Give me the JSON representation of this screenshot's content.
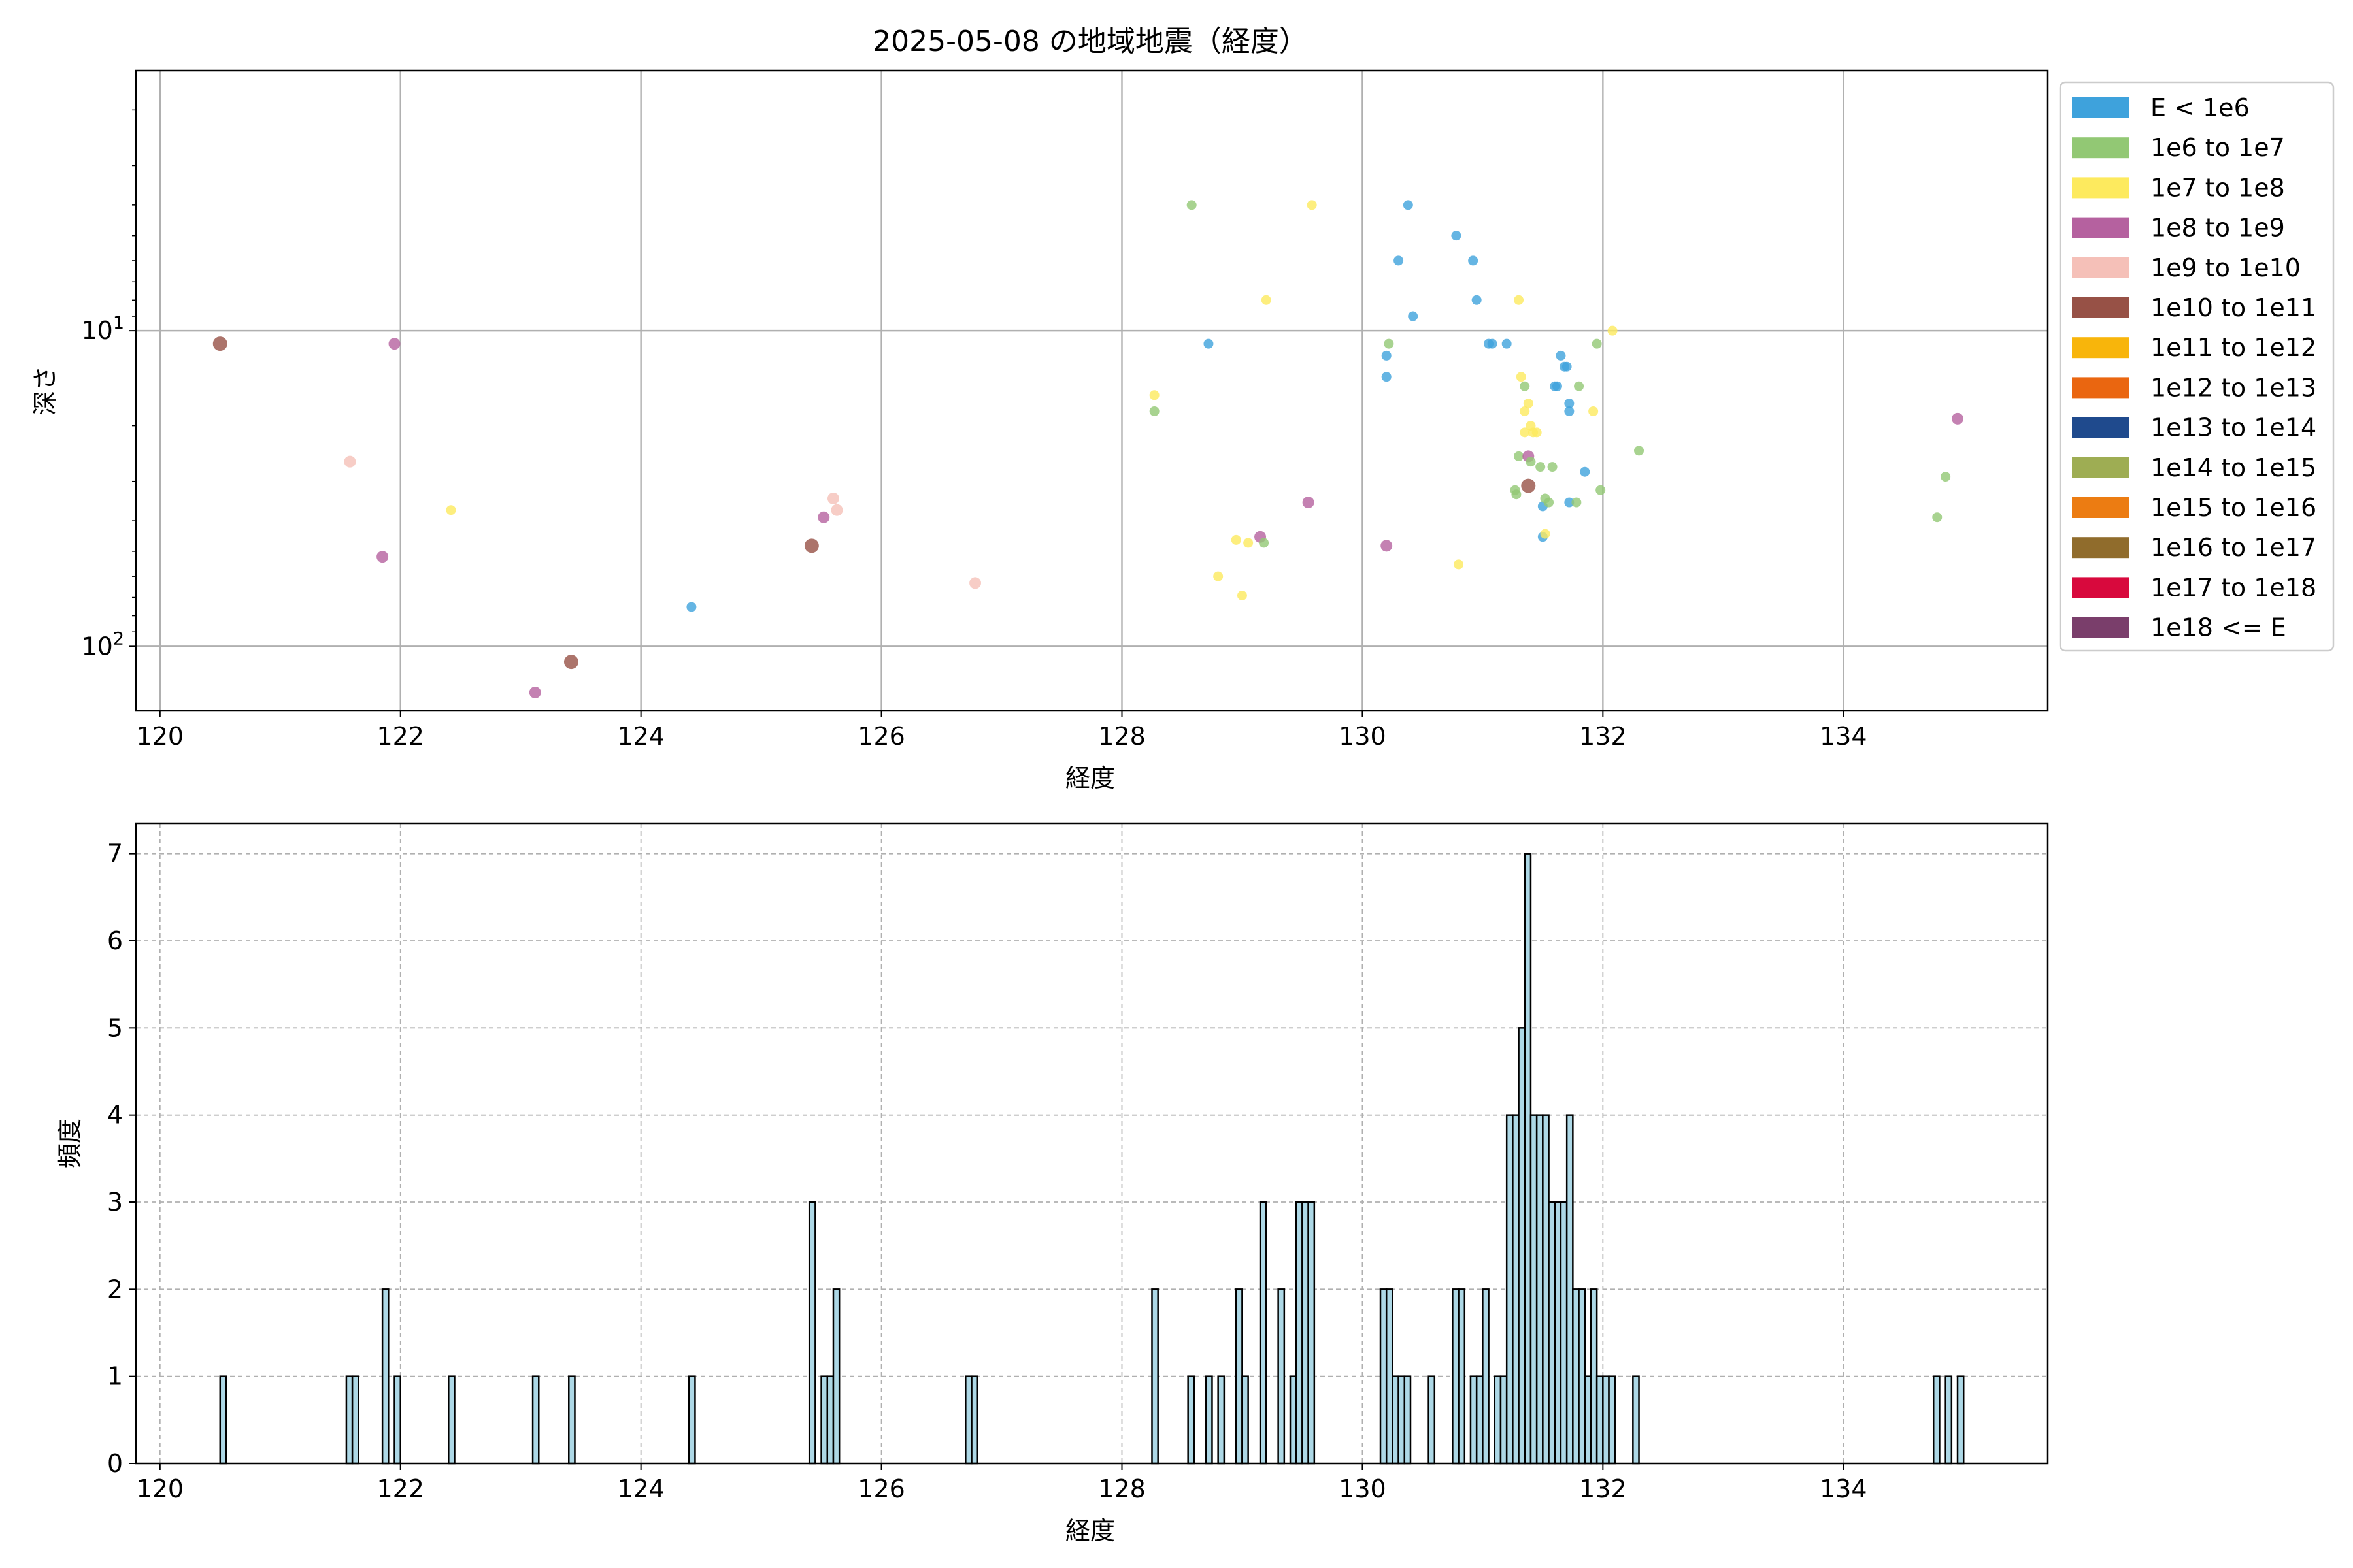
{
  "chart_data": [
    {
      "type": "scatter",
      "title": "2025-05-08 の地域地震（経度）",
      "xlabel": "経度",
      "ylabel": "深さ",
      "xlim": [
        119.8,
        135.7
      ],
      "ylim": [
        160,
        1.5
      ],
      "yscale": "log",
      "y_inverted": true,
      "x_ticks": [
        120,
        122,
        124,
        126,
        128,
        130,
        132,
        134
      ],
      "y_ticks": [
        10,
        100
      ],
      "y_tick_labels": [
        "10^1",
        "10^2"
      ],
      "grid": true,
      "legend_position": "outside-right",
      "legend": [
        {
          "label": "E < 1e6",
          "color": "#3ea2dc"
        },
        {
          "label": "1e6 to 1e7",
          "color": "#92c874"
        },
        {
          "label": "1e7 to 1e8",
          "color": "#fdea5e"
        },
        {
          "label": "1e8 to 1e9",
          "color": "#b5619f"
        },
        {
          "label": "1e9 to 1e10",
          "color": "#f5c0b8"
        },
        {
          "label": "1e10 to 1e11",
          "color": "#975146"
        },
        {
          "label": "1e11 to 1e12",
          "color": "#f8b50b"
        },
        {
          "label": "1e12 to 1e13",
          "color": "#ea6610"
        },
        {
          "label": "1e13 to 1e14",
          "color": "#1f4a8d"
        },
        {
          "label": "1e14 to 1e15",
          "color": "#9ead53"
        },
        {
          "label": "1e15 to 1e16",
          "color": "#ec7c12"
        },
        {
          "label": "1e16 to 1e17",
          "color": "#906c2c"
        },
        {
          "label": "1e17 to 1e18",
          "color": "#d8093d"
        },
        {
          "label": "1e18 <= E",
          "color": "#7a3e6b"
        }
      ],
      "points": [
        {
          "x": 120.5,
          "y": 11,
          "c": 5
        },
        {
          "x": 121.95,
          "y": 11,
          "c": 3
        },
        {
          "x": 121.58,
          "y": 26,
          "c": 4
        },
        {
          "x": 121.85,
          "y": 52,
          "c": 3
        },
        {
          "x": 122.42,
          "y": 37,
          "c": 2
        },
        {
          "x": 123.12,
          "y": 140,
          "c": 3
        },
        {
          "x": 123.42,
          "y": 112,
          "c": 5
        },
        {
          "x": 124.42,
          "y": 75,
          "c": 0
        },
        {
          "x": 125.42,
          "y": 48,
          "c": 5
        },
        {
          "x": 125.52,
          "y": 39,
          "c": 3
        },
        {
          "x": 125.6,
          "y": 34,
          "c": 4
        },
        {
          "x": 125.63,
          "y": 37,
          "c": 4
        },
        {
          "x": 126.78,
          "y": 63,
          "c": 4
        },
        {
          "x": 128.27,
          "y": 16,
          "c": 2
        },
        {
          "x": 128.27,
          "y": 18,
          "c": 1
        },
        {
          "x": 128.58,
          "y": 4,
          "c": 1
        },
        {
          "x": 128.72,
          "y": 11,
          "c": 0
        },
        {
          "x": 128.8,
          "y": 60,
          "c": 2
        },
        {
          "x": 128.95,
          "y": 46,
          "c": 2
        },
        {
          "x": 129.0,
          "y": 69,
          "c": 2
        },
        {
          "x": 129.05,
          "y": 47,
          "c": 2
        },
        {
          "x": 129.15,
          "y": 45,
          "c": 3
        },
        {
          "x": 129.18,
          "y": 47,
          "c": 1
        },
        {
          "x": 129.2,
          "y": 8,
          "c": 2
        },
        {
          "x": 129.55,
          "y": 35,
          "c": 3
        },
        {
          "x": 129.58,
          "y": 4,
          "c": 2
        },
        {
          "x": 130.2,
          "y": 14,
          "c": 0
        },
        {
          "x": 130.2,
          "y": 12,
          "c": 0
        },
        {
          "x": 130.22,
          "y": 11,
          "c": 1
        },
        {
          "x": 130.2,
          "y": 48,
          "c": 3
        },
        {
          "x": 130.3,
          "y": 6,
          "c": 0
        },
        {
          "x": 130.38,
          "y": 4,
          "c": 0
        },
        {
          "x": 130.42,
          "y": 9,
          "c": 0
        },
        {
          "x": 130.78,
          "y": 5,
          "c": 0
        },
        {
          "x": 130.8,
          "y": 55,
          "c": 2
        },
        {
          "x": 130.92,
          "y": 6,
          "c": 0
        },
        {
          "x": 130.95,
          "y": 8,
          "c": 0
        },
        {
          "x": 131.05,
          "y": 11,
          "c": 0
        },
        {
          "x": 131.08,
          "y": 11,
          "c": 0
        },
        {
          "x": 131.2,
          "y": 11,
          "c": 0
        },
        {
          "x": 131.3,
          "y": 8,
          "c": 2
        },
        {
          "x": 131.27,
          "y": 32,
          "c": 1
        },
        {
          "x": 131.28,
          "y": 33,
          "c": 1
        },
        {
          "x": 131.3,
          "y": 25,
          "c": 1
        },
        {
          "x": 131.32,
          "y": 14,
          "c": 2
        },
        {
          "x": 131.35,
          "y": 15,
          "c": 1
        },
        {
          "x": 131.35,
          "y": 18,
          "c": 2
        },
        {
          "x": 131.35,
          "y": 21,
          "c": 2
        },
        {
          "x": 131.38,
          "y": 17,
          "c": 2
        },
        {
          "x": 131.4,
          "y": 20,
          "c": 2
        },
        {
          "x": 131.42,
          "y": 21,
          "c": 2
        },
        {
          "x": 131.38,
          "y": 25,
          "c": 3
        },
        {
          "x": 131.4,
          "y": 26,
          "c": 1
        },
        {
          "x": 131.38,
          "y": 31,
          "c": 5
        },
        {
          "x": 131.45,
          "y": 21,
          "c": 2
        },
        {
          "x": 131.48,
          "y": 27,
          "c": 1
        },
        {
          "x": 131.5,
          "y": 36,
          "c": 0
        },
        {
          "x": 131.5,
          "y": 45,
          "c": 0
        },
        {
          "x": 131.52,
          "y": 44,
          "c": 2
        },
        {
          "x": 131.52,
          "y": 34,
          "c": 1
        },
        {
          "x": 131.55,
          "y": 35,
          "c": 1
        },
        {
          "x": 131.58,
          "y": 27,
          "c": 1
        },
        {
          "x": 131.6,
          "y": 15,
          "c": 0
        },
        {
          "x": 131.62,
          "y": 15,
          "c": 0
        },
        {
          "x": 131.65,
          "y": 12,
          "c": 0
        },
        {
          "x": 131.68,
          "y": 13,
          "c": 0
        },
        {
          "x": 131.7,
          "y": 13,
          "c": 0
        },
        {
          "x": 131.72,
          "y": 17,
          "c": 0
        },
        {
          "x": 131.72,
          "y": 18,
          "c": 0
        },
        {
          "x": 131.72,
          "y": 35,
          "c": 0
        },
        {
          "x": 131.78,
          "y": 35,
          "c": 1
        },
        {
          "x": 131.8,
          "y": 15,
          "c": 1
        },
        {
          "x": 131.85,
          "y": 28,
          "c": 0
        },
        {
          "x": 131.92,
          "y": 18,
          "c": 2
        },
        {
          "x": 131.95,
          "y": 11,
          "c": 1
        },
        {
          "x": 131.98,
          "y": 32,
          "c": 1
        },
        {
          "x": 132.08,
          "y": 10,
          "c": 2
        },
        {
          "x": 132.3,
          "y": 24,
          "c": 1
        },
        {
          "x": 134.78,
          "y": 39,
          "c": 1
        },
        {
          "x": 134.85,
          "y": 29,
          "c": 1
        },
        {
          "x": 134.95,
          "y": 19,
          "c": 3
        }
      ]
    },
    {
      "type": "bar",
      "xlabel": "経度",
      "ylabel": "頻度",
      "xlim": [
        119.8,
        135.7
      ],
      "ylim": [
        0,
        7.35
      ],
      "x_ticks": [
        120,
        122,
        124,
        126,
        128,
        130,
        132,
        134
      ],
      "y_ticks": [
        0,
        1,
        2,
        3,
        4,
        5,
        6,
        7
      ],
      "bin_width": 0.05,
      "grid": "dashed",
      "bar_color": "#add8e6",
      "edge_color": "#000000",
      "bins": [
        {
          "x": 120.5,
          "v": 1
        },
        {
          "x": 121.55,
          "v": 1
        },
        {
          "x": 121.6,
          "v": 1
        },
        {
          "x": 121.85,
          "v": 2
        },
        {
          "x": 121.95,
          "v": 1
        },
        {
          "x": 122.4,
          "v": 1
        },
        {
          "x": 123.1,
          "v": 1
        },
        {
          "x": 123.4,
          "v": 1
        },
        {
          "x": 124.4,
          "v": 1
        },
        {
          "x": 125.4,
          "v": 3
        },
        {
          "x": 125.5,
          "v": 1
        },
        {
          "x": 125.55,
          "v": 1
        },
        {
          "x": 125.6,
          "v": 2
        },
        {
          "x": 126.7,
          "v": 1
        },
        {
          "x": 126.75,
          "v": 1
        },
        {
          "x": 128.25,
          "v": 2
        },
        {
          "x": 128.55,
          "v": 1
        },
        {
          "x": 128.7,
          "v": 1
        },
        {
          "x": 128.8,
          "v": 1
        },
        {
          "x": 128.95,
          "v": 2
        },
        {
          "x": 129.0,
          "v": 1
        },
        {
          "x": 129.15,
          "v": 3
        },
        {
          "x": 129.3,
          "v": 2
        },
        {
          "x": 129.4,
          "v": 1
        },
        {
          "x": 129.45,
          "v": 3
        },
        {
          "x": 129.5,
          "v": 3
        },
        {
          "x": 129.55,
          "v": 3
        },
        {
          "x": 130.15,
          "v": 2
        },
        {
          "x": 130.2,
          "v": 2
        },
        {
          "x": 130.25,
          "v": 1
        },
        {
          "x": 130.3,
          "v": 1
        },
        {
          "x": 130.35,
          "v": 1
        },
        {
          "x": 130.55,
          "v": 1
        },
        {
          "x": 130.75,
          "v": 2
        },
        {
          "x": 130.8,
          "v": 2
        },
        {
          "x": 130.9,
          "v": 1
        },
        {
          "x": 130.95,
          "v": 1
        },
        {
          "x": 131.0,
          "v": 2
        },
        {
          "x": 131.1,
          "v": 1
        },
        {
          "x": 131.15,
          "v": 1
        },
        {
          "x": 131.2,
          "v": 4
        },
        {
          "x": 131.25,
          "v": 4
        },
        {
          "x": 131.3,
          "v": 5
        },
        {
          "x": 131.35,
          "v": 7
        },
        {
          "x": 131.4,
          "v": 4
        },
        {
          "x": 131.45,
          "v": 4
        },
        {
          "x": 131.5,
          "v": 4
        },
        {
          "x": 131.55,
          "v": 3
        },
        {
          "x": 131.6,
          "v": 3
        },
        {
          "x": 131.65,
          "v": 3
        },
        {
          "x": 131.7,
          "v": 4
        },
        {
          "x": 131.75,
          "v": 2
        },
        {
          "x": 131.8,
          "v": 2
        },
        {
          "x": 131.85,
          "v": 1
        },
        {
          "x": 131.9,
          "v": 2
        },
        {
          "x": 131.95,
          "v": 1
        },
        {
          "x": 132.0,
          "v": 1
        },
        {
          "x": 132.05,
          "v": 1
        },
        {
          "x": 132.25,
          "v": 1
        },
        {
          "x": 134.75,
          "v": 1
        },
        {
          "x": 134.85,
          "v": 1
        },
        {
          "x": 134.95,
          "v": 1
        }
      ]
    }
  ]
}
